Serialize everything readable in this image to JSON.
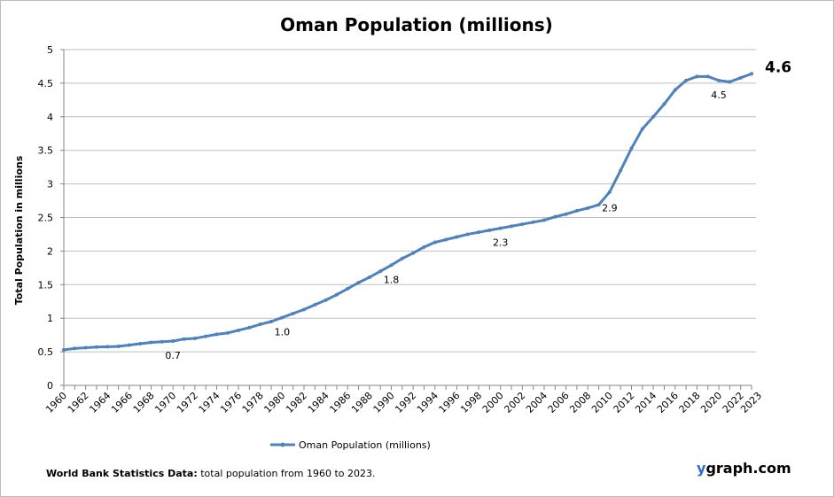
{
  "chart_data": {
    "type": "line",
    "title": "Oman Population (millions)",
    "ylabel": "Total Population  in millions",
    "xlabel": "",
    "ylim": [
      0,
      5
    ],
    "yticks": [
      "0",
      "0.5",
      "1",
      "1.5",
      "2",
      "2.5",
      "3",
      "3.5",
      "4",
      "4.5",
      "5"
    ],
    "xlim": [
      1960,
      2023
    ],
    "xticks": [
      "1960",
      "1962",
      "1964",
      "1966",
      "1968",
      "1970",
      "1972",
      "1974",
      "1976",
      "1978",
      "1980",
      "1982",
      "1984",
      "1986",
      "1988",
      "1990",
      "1992",
      "1994",
      "1996",
      "1998",
      "2000",
      "2002",
      "2004",
      "2006",
      "2008",
      "2010",
      "2012",
      "2014",
      "2016",
      "2018",
      "2020",
      "2022",
      "2023"
    ],
    "grid": true,
    "legend": "bottom",
    "series": [
      {
        "name": "Oman Population (millions)",
        "color": "#4f81bd",
        "x": [
          1960,
          1961,
          1962,
          1963,
          1964,
          1965,
          1966,
          1967,
          1968,
          1969,
          1970,
          1971,
          1972,
          1973,
          1974,
          1975,
          1976,
          1977,
          1978,
          1979,
          1980,
          1981,
          1982,
          1983,
          1984,
          1985,
          1986,
          1987,
          1988,
          1989,
          1990,
          1991,
          1992,
          1993,
          1994,
          1995,
          1996,
          1997,
          1998,
          1999,
          2000,
          2001,
          2002,
          2003,
          2004,
          2005,
          2006,
          2007,
          2008,
          2009,
          2010,
          2011,
          2012,
          2013,
          2014,
          2015,
          2016,
          2017,
          2018,
          2019,
          2020,
          2021,
          2022,
          2023
        ],
        "values": [
          0.53,
          0.55,
          0.56,
          0.57,
          0.575,
          0.58,
          0.6,
          0.62,
          0.64,
          0.65,
          0.66,
          0.69,
          0.7,
          0.73,
          0.76,
          0.78,
          0.82,
          0.86,
          0.91,
          0.95,
          1.01,
          1.07,
          1.13,
          1.2,
          1.27,
          1.35,
          1.44,
          1.53,
          1.61,
          1.7,
          1.79,
          1.89,
          1.97,
          2.06,
          2.13,
          2.17,
          2.21,
          2.25,
          2.28,
          2.31,
          2.34,
          2.37,
          2.4,
          2.43,
          2.46,
          2.51,
          2.55,
          2.6,
          2.64,
          2.69,
          2.88,
          3.2,
          3.53,
          3.82,
          4.0,
          4.19,
          4.4,
          4.54,
          4.6,
          4.6,
          4.54,
          4.52,
          4.58,
          4.64
        ]
      }
    ],
    "annotations": [
      {
        "x": 1970,
        "text": "0.7"
      },
      {
        "x": 1980,
        "text": "1.0"
      },
      {
        "x": 1990,
        "text": "1.8"
      },
      {
        "x": 2000,
        "text": "2.3"
      },
      {
        "x": 2010,
        "text": "2.9"
      },
      {
        "x": 2020,
        "text": "4.5"
      },
      {
        "x": 2023,
        "text": "4.6",
        "emphasis": true
      }
    ]
  },
  "footer": {
    "bold": "World Bank Statistics Data:",
    "text": " total population from 1960 to 2023."
  },
  "brand": {
    "y": "y",
    "rest": "graph.com"
  }
}
